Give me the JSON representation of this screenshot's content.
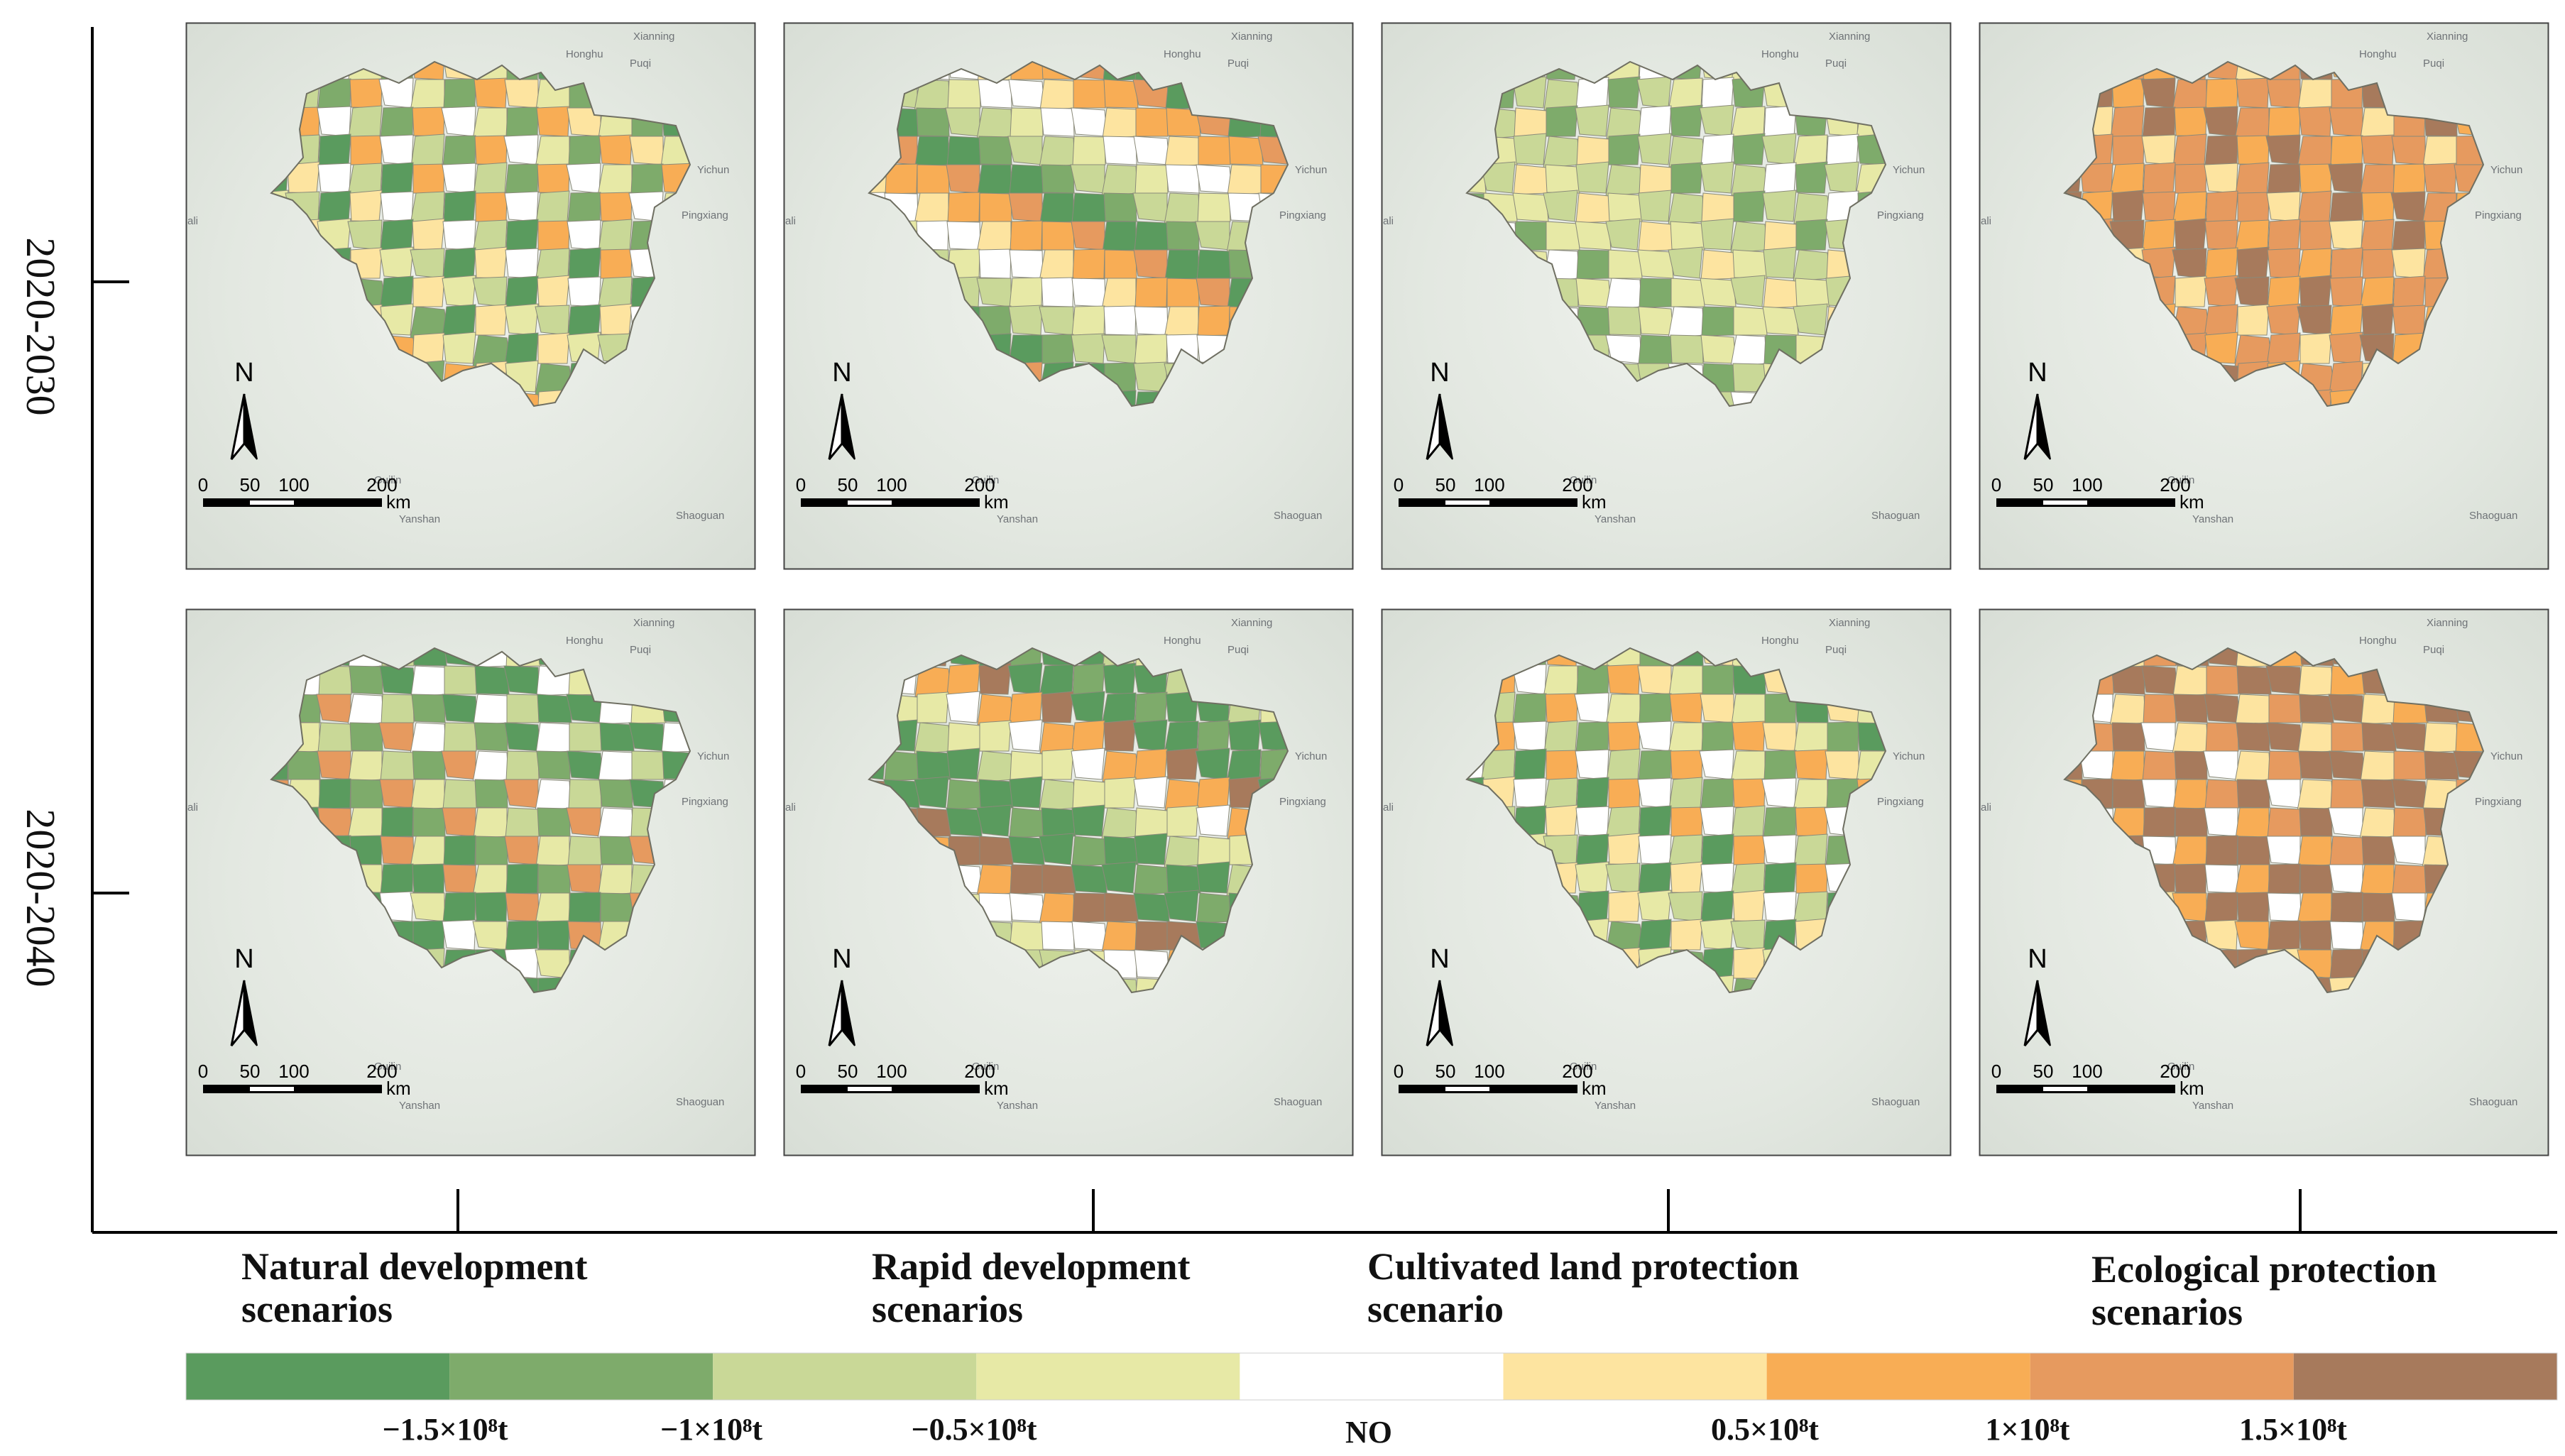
{
  "row_labels": [
    "2020-2030",
    "2020-2040"
  ],
  "column_labels": [
    [
      "Natural development",
      "scenarios"
    ],
    [
      "Rapid development",
      "scenarios"
    ],
    [
      "Cultivated land protection",
      "scenario"
    ],
    [
      "Ecological protection",
      "scenarios"
    ]
  ],
  "place_names": [
    "Xianning",
    "Honghu",
    "Puqi",
    "Yichun",
    "Pingxiang",
    "Guilin",
    "Yanshan",
    "Shaoguan",
    "ali"
  ],
  "north_label": "N",
  "scale_bar": {
    "ticks": [
      "0",
      "50",
      "100",
      "200"
    ],
    "unit": "km"
  },
  "legend": {
    "classes": [
      {
        "color": "#5a9b5e"
      },
      {
        "color": "#7eab6b"
      },
      {
        "color": "#c9d897"
      },
      {
        "color": "#e7e9a6"
      },
      {
        "color": "#ffffff"
      },
      {
        "color": "#fde4a0"
      },
      {
        "color": "#f8ad55"
      },
      {
        "color": "#e69a5f"
      },
      {
        "color": "#a77a5c"
      }
    ],
    "labels": [
      "−1.5×10⁸t",
      "−1×10⁸t",
      "−0.5×10⁸t",
      "NO",
      "0.5×10⁸t",
      "1×10⁸t",
      "1.5×10⁸t"
    ]
  },
  "map_palettes": [
    [
      "#5a9b5e",
      "#7eab6b",
      "#c9d897",
      "#e7e9a6",
      "#ffffff",
      "#fde4a0",
      "#f8ad55"
    ],
    [
      "#5a9b5e",
      "#7eab6b",
      "#c9d897",
      "#e7e9a6",
      "#ffffff",
      "#fde4a0",
      "#f8ad55",
      "#e69a5f"
    ],
    [
      "#c9d897",
      "#e7e9a6",
      "#c9d897",
      "#e7e9a6",
      "#7eab6b",
      "#fde4a0",
      "#ffffff"
    ],
    [
      "#f8ad55",
      "#e69a5f",
      "#f8ad55",
      "#a77a5c",
      "#fde4a0",
      "#e69a5f"
    ],
    [
      "#5a9b5e",
      "#7eab6b",
      "#5a9b5e",
      "#c9d897",
      "#e7e9a6",
      "#ffffff",
      "#e69a5f"
    ],
    [
      "#5a9b5e",
      "#7eab6b",
      "#5a9b5e",
      "#c9d897",
      "#e7e9a6",
      "#ffffff",
      "#f8ad55",
      "#a77a5c"
    ],
    [
      "#5a9b5e",
      "#7eab6b",
      "#c9d897",
      "#e7e9a6",
      "#ffffff",
      "#fde4a0",
      "#f8ad55"
    ],
    [
      "#a77a5c",
      "#a77a5c",
      "#a77a5c",
      "#e69a5f",
      "#f8ad55",
      "#fde4a0",
      "#ffffff"
    ]
  ]
}
